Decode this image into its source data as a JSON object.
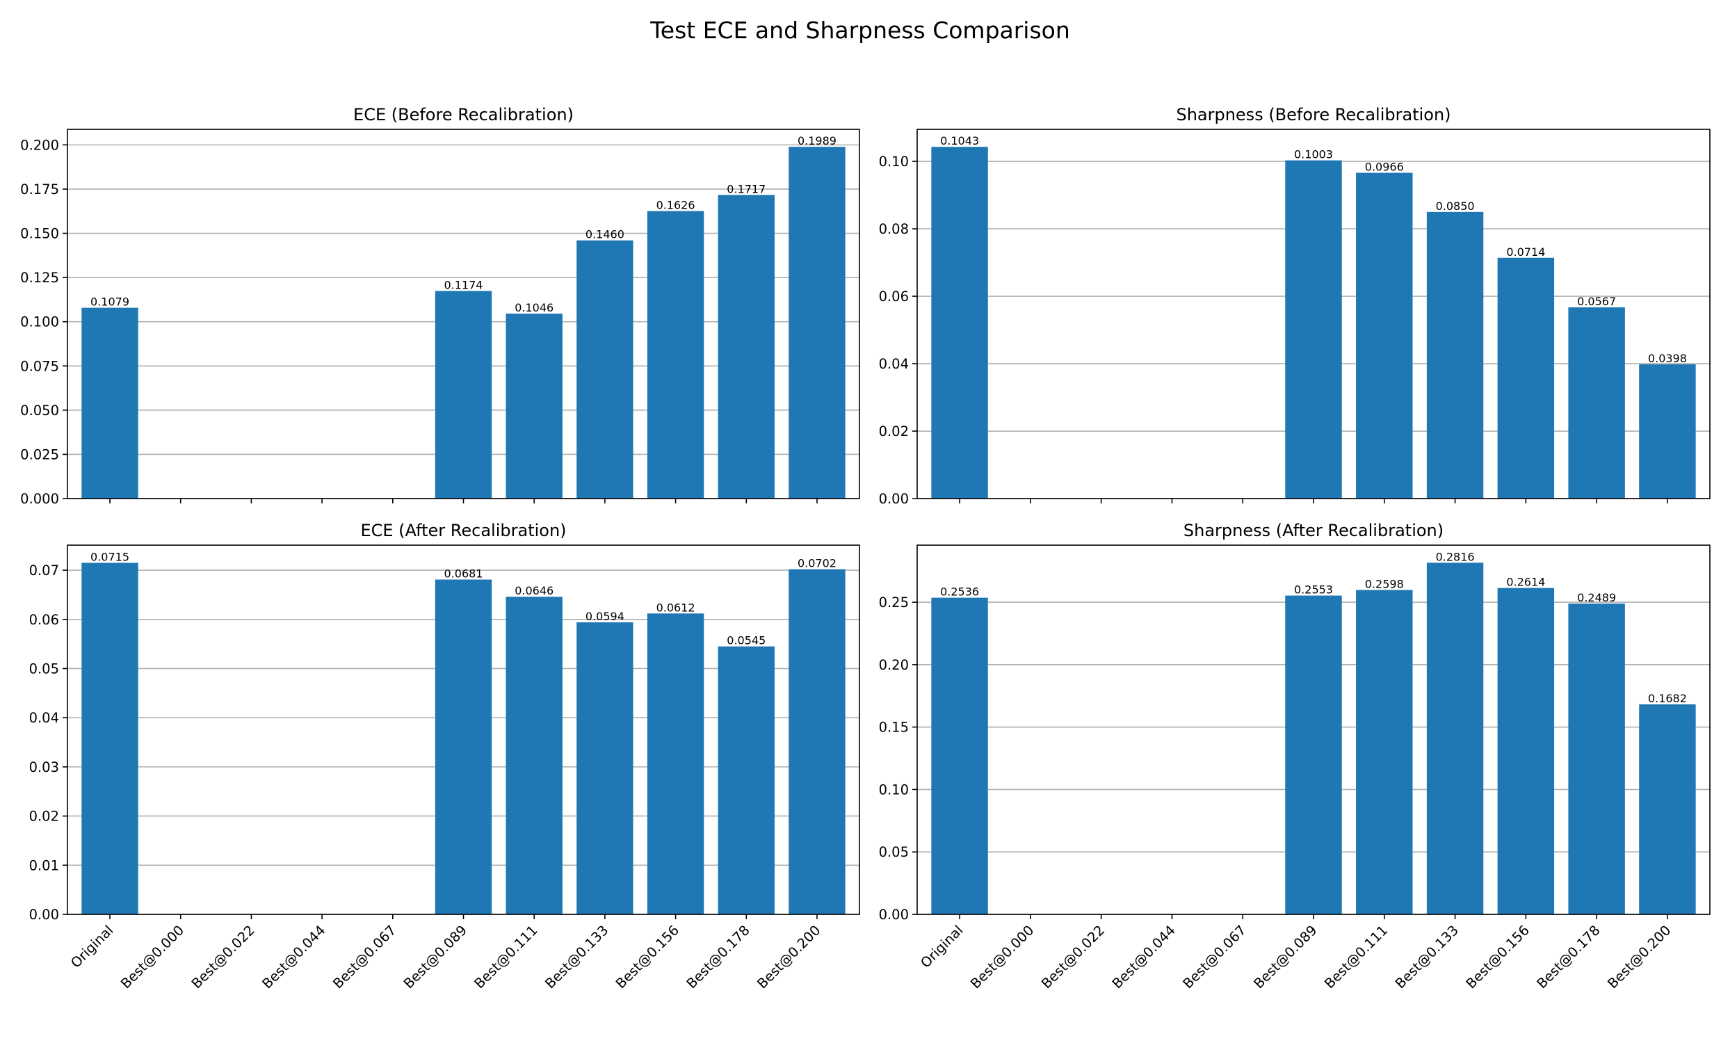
{
  "figure_title": "Test ECE and Sharpness Comparison",
  "colors": {
    "bar": "#1f77b4",
    "grid": "#b0b0b0"
  },
  "chart_data": [
    {
      "type": "bar",
      "title": "ECE (Before Recalibration)",
      "categories": [
        "Original",
        "Best@0.000",
        "Best@0.022",
        "Best@0.044",
        "Best@0.067",
        "Best@0.089",
        "Best@0.111",
        "Best@0.133",
        "Best@0.156",
        "Best@0.178",
        "Best@0.200"
      ],
      "values": [
        0.1079,
        null,
        null,
        null,
        null,
        0.1174,
        0.1046,
        0.146,
        0.1626,
        0.1717,
        0.1989
      ],
      "value_labels": [
        "0.1079",
        "",
        "",
        "",
        "",
        "0.1174",
        "0.1046",
        "0.1460",
        "0.1626",
        "0.1717",
        "0.1989"
      ],
      "yticks": [
        "0.000",
        "0.025",
        "0.050",
        "0.075",
        "0.100",
        "0.125",
        "0.150",
        "0.175",
        "0.200"
      ],
      "ylim": [
        0,
        0.2088
      ],
      "grid": "y",
      "show_xticklabels": false
    },
    {
      "type": "bar",
      "title": "Sharpness (Before Recalibration)",
      "categories": [
        "Original",
        "Best@0.000",
        "Best@0.022",
        "Best@0.044",
        "Best@0.067",
        "Best@0.089",
        "Best@0.111",
        "Best@0.133",
        "Best@0.156",
        "Best@0.178",
        "Best@0.200"
      ],
      "values": [
        0.1043,
        null,
        null,
        null,
        null,
        0.1003,
        0.0966,
        0.085,
        0.0714,
        0.0567,
        0.0398
      ],
      "value_labels": [
        "0.1043",
        "",
        "",
        "",
        "",
        "0.1003",
        "0.0966",
        "0.0850",
        "0.0714",
        "0.0567",
        "0.0398"
      ],
      "yticks": [
        "0.00",
        "0.02",
        "0.04",
        "0.06",
        "0.08",
        "0.10"
      ],
      "ylim": [
        0,
        0.1095
      ],
      "grid": "y",
      "show_xticklabels": false
    },
    {
      "type": "bar",
      "title": "ECE (After Recalibration)",
      "categories": [
        "Original",
        "Best@0.000",
        "Best@0.022",
        "Best@0.044",
        "Best@0.067",
        "Best@0.089",
        "Best@0.111",
        "Best@0.133",
        "Best@0.156",
        "Best@0.178",
        "Best@0.200"
      ],
      "values": [
        0.0715,
        null,
        null,
        null,
        null,
        0.0681,
        0.0646,
        0.0594,
        0.0612,
        0.0545,
        0.0702
      ],
      "value_labels": [
        "0.0715",
        "",
        "",
        "",
        "",
        "0.0681",
        "0.0646",
        "0.0594",
        "0.0612",
        "0.0545",
        "0.0702"
      ],
      "yticks": [
        "0.00",
        "0.01",
        "0.02",
        "0.03",
        "0.04",
        "0.05",
        "0.06",
        "0.07"
      ],
      "ylim": [
        0,
        0.0751
      ],
      "grid": "y",
      "show_xticklabels": true
    },
    {
      "type": "bar",
      "title": "Sharpness (After Recalibration)",
      "categories": [
        "Original",
        "Best@0.000",
        "Best@0.022",
        "Best@0.044",
        "Best@0.067",
        "Best@0.089",
        "Best@0.111",
        "Best@0.133",
        "Best@0.156",
        "Best@0.178",
        "Best@0.200"
      ],
      "values": [
        0.2536,
        null,
        null,
        null,
        null,
        0.2553,
        0.2598,
        0.2816,
        0.2614,
        0.2489,
        0.1682
      ],
      "value_labels": [
        "0.2536",
        "",
        "",
        "",
        "",
        "0.2553",
        "0.2598",
        "0.2816",
        "0.2614",
        "0.2489",
        "0.1682"
      ],
      "yticks": [
        "0.00",
        "0.05",
        "0.10",
        "0.15",
        "0.20",
        "0.25"
      ],
      "ylim": [
        0,
        0.2957
      ],
      "grid": "y",
      "show_xticklabels": true
    }
  ]
}
